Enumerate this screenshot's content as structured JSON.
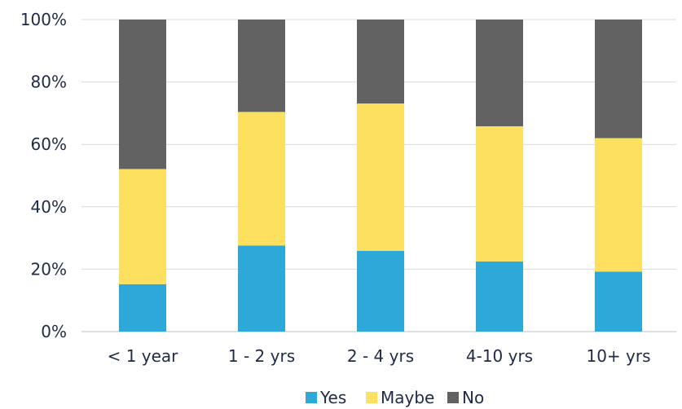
{
  "chart_data": {
    "type": "bar",
    "stacked": true,
    "percent": true,
    "categories": [
      "< 1 year",
      "1 - 2 yrs",
      "2 - 4 yrs",
      "4-10 yrs",
      "10+ yrs"
    ],
    "series": [
      {
        "name": "Yes",
        "color": "#2ea8d8",
        "values": [
          15.2,
          27.6,
          25.9,
          22.5,
          19.2
        ]
      },
      {
        "name": "Maybe",
        "color": "#fde05f",
        "values": [
          36.9,
          42.8,
          47.2,
          43.3,
          42.8
        ]
      },
      {
        "name": "No",
        "color": "#626262",
        "values": [
          47.9,
          29.6,
          26.9,
          34.2,
          38.0
        ]
      }
    ],
    "ylim": [
      0,
      100
    ],
    "yticks": [
      "0%",
      "20%",
      "40%",
      "60%",
      "80%",
      "100%"
    ],
    "grid": true,
    "legend_position": "bottom"
  }
}
